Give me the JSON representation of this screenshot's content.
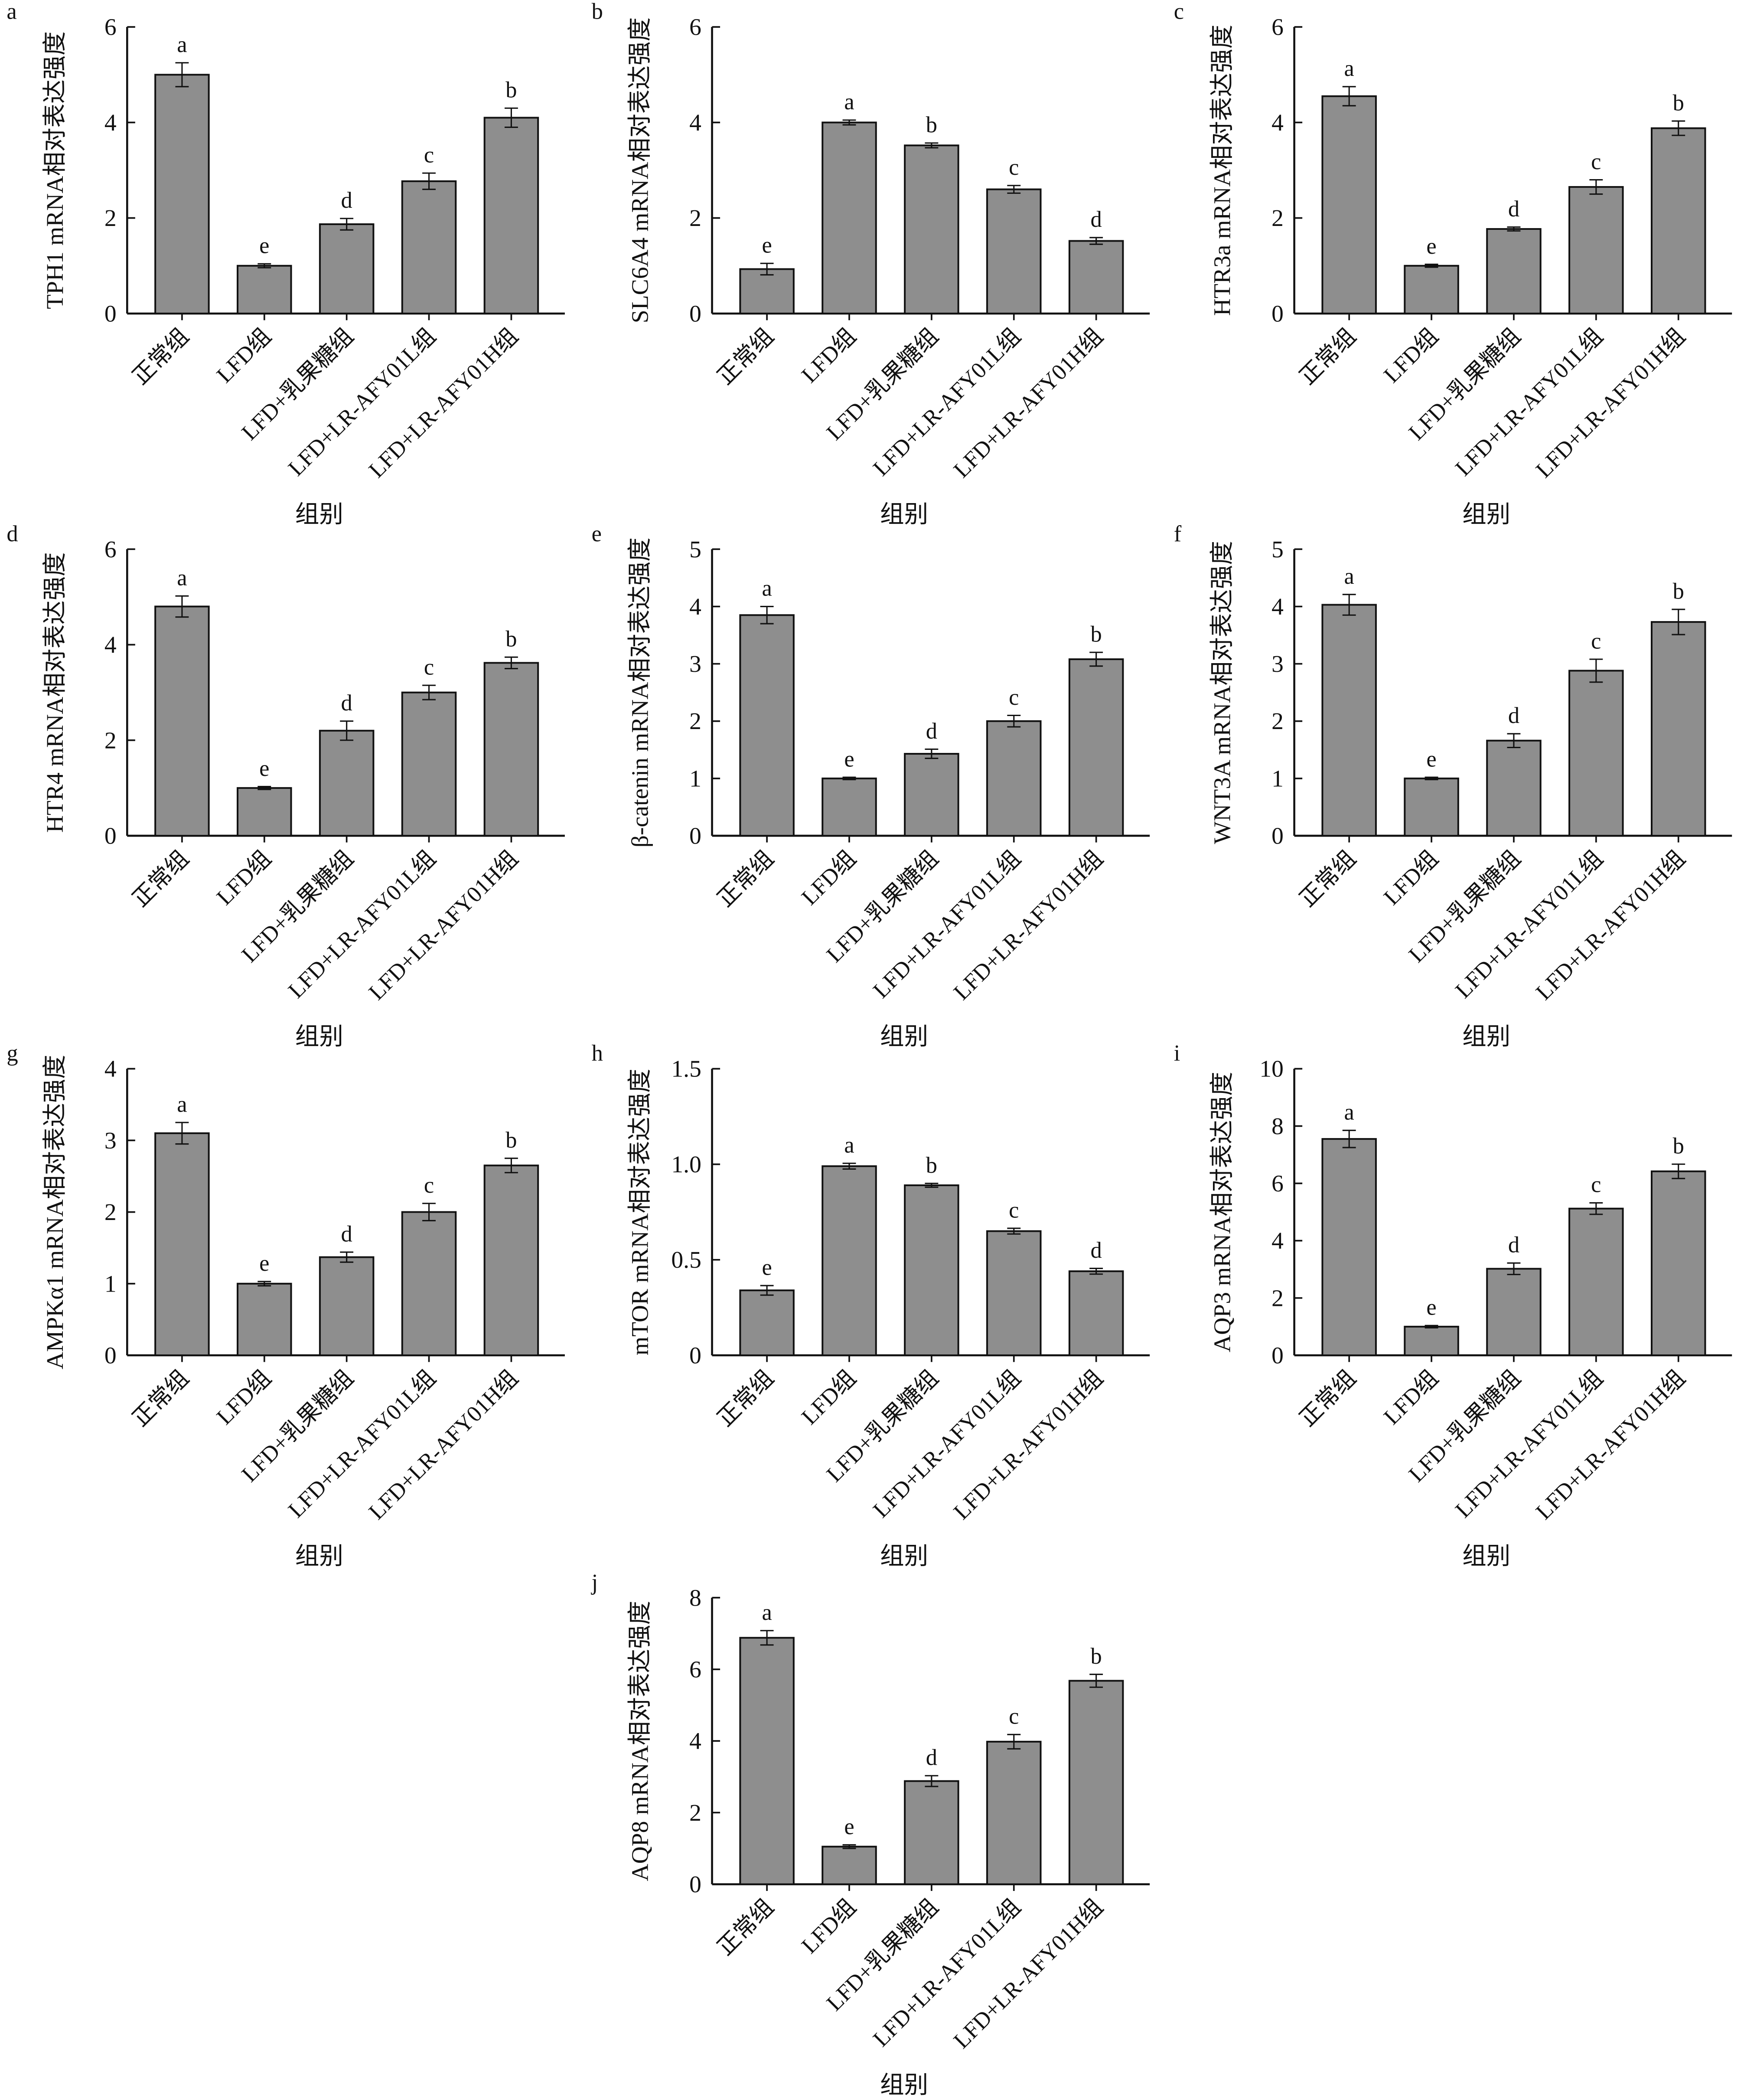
{
  "chart_data": [
    {
      "type": "bar",
      "panel": "a",
      "ylabel": "TPH1 mRNA相对表达强度",
      "xlabel": "组别",
      "ylim": [
        0,
        6
      ],
      "yticks": [
        0,
        2,
        4,
        6
      ],
      "categories": [
        "正常组",
        "LFD组",
        "LFD+乳果糖组",
        "LFD+LR-AFY01L组",
        "LFD+LR-AFY01H组"
      ],
      "values": [
        5.0,
        1.0,
        1.87,
        2.77,
        4.1
      ],
      "errors": [
        0.25,
        0.04,
        0.12,
        0.17,
        0.2
      ],
      "letters": [
        "a",
        "e",
        "d",
        "c",
        "b"
      ]
    },
    {
      "type": "bar",
      "panel": "b",
      "ylabel": "SLC6A4 mRNA相对表达强度",
      "xlabel": "组别",
      "ylim": [
        0,
        6
      ],
      "yticks": [
        0,
        2,
        4,
        6
      ],
      "categories": [
        "正常组",
        "LFD组",
        "LFD+乳果糖组",
        "LFD+LR-AFY01L组",
        "LFD+LR-AFY01H组"
      ],
      "values": [
        0.93,
        4.0,
        3.52,
        2.6,
        1.52
      ],
      "errors": [
        0.12,
        0.05,
        0.05,
        0.08,
        0.07
      ],
      "letters": [
        "e",
        "a",
        "b",
        "c",
        "d"
      ]
    },
    {
      "type": "bar",
      "panel": "c",
      "ylabel": "HTR3a mRNA相对表达强度",
      "xlabel": "组别",
      "ylim": [
        0,
        6
      ],
      "yticks": [
        0,
        2,
        4,
        6
      ],
      "categories": [
        "正常组",
        "LFD组",
        "LFD+乳果糖组",
        "LFD+LR-AFY01L组",
        "LFD+LR-AFY01H组"
      ],
      "values": [
        4.55,
        1.0,
        1.77,
        2.65,
        3.88
      ],
      "errors": [
        0.2,
        0.03,
        0.04,
        0.15,
        0.15
      ],
      "letters": [
        "a",
        "e",
        "d",
        "c",
        "b"
      ]
    },
    {
      "type": "bar",
      "panel": "d",
      "ylabel": "HTR4 mRNA相对表达强度",
      "xlabel": "组别",
      "ylim": [
        0,
        6
      ],
      "yticks": [
        0,
        2,
        4,
        6
      ],
      "categories": [
        "正常组",
        "LFD组",
        "LFD+乳果糖组",
        "LFD+LR-AFY01L组",
        "LFD+LR-AFY01H组"
      ],
      "values": [
        4.8,
        1.0,
        2.2,
        3.0,
        3.62
      ],
      "errors": [
        0.22,
        0.03,
        0.2,
        0.15,
        0.12
      ],
      "letters": [
        "a",
        "e",
        "d",
        "c",
        "b"
      ]
    },
    {
      "type": "bar",
      "panel": "e",
      "ylabel": "β-catenin mRNA相对表达强度",
      "xlabel": "组别",
      "ylim": [
        0,
        5
      ],
      "yticks": [
        0,
        1,
        2,
        3,
        4,
        5
      ],
      "categories": [
        "正常组",
        "LFD组",
        "LFD+乳果糖组",
        "LFD+LR-AFY01L组",
        "LFD+LR-AFY01H组"
      ],
      "values": [
        3.85,
        1.0,
        1.43,
        2.0,
        3.08
      ],
      "errors": [
        0.15,
        0.02,
        0.08,
        0.1,
        0.12
      ],
      "letters": [
        "a",
        "e",
        "d",
        "c",
        "b"
      ]
    },
    {
      "type": "bar",
      "panel": "f",
      "ylabel": "WNT3A mRNA相对表达强度",
      "xlabel": "组别",
      "ylim": [
        0,
        5
      ],
      "yticks": [
        0,
        1,
        2,
        3,
        4,
        5
      ],
      "categories": [
        "正常组",
        "LFD组",
        "LFD+乳果糖组",
        "LFD+LR-AFY01L组",
        "LFD+LR-AFY01H组"
      ],
      "values": [
        4.03,
        1.0,
        1.66,
        2.88,
        3.73
      ],
      "errors": [
        0.18,
        0.02,
        0.12,
        0.2,
        0.22
      ],
      "letters": [
        "a",
        "e",
        "d",
        "c",
        "b"
      ]
    },
    {
      "type": "bar",
      "panel": "g",
      "ylabel": "AMPKα1 mRNA相对表达强度",
      "xlabel": "组别",
      "ylim": [
        0,
        4
      ],
      "yticks": [
        0,
        1,
        2,
        3,
        4
      ],
      "categories": [
        "正常组",
        "LFD组",
        "LFD+乳果糖组",
        "LFD+LR-AFY01L组",
        "LFD+LR-AFY01H组"
      ],
      "values": [
        3.1,
        1.0,
        1.37,
        2.0,
        2.65
      ],
      "errors": [
        0.15,
        0.03,
        0.07,
        0.12,
        0.1
      ],
      "letters": [
        "a",
        "e",
        "d",
        "c",
        "b"
      ]
    },
    {
      "type": "bar",
      "panel": "h",
      "ylabel": "mTOR mRNA相对表达强度",
      "xlabel": "组别",
      "ylim": [
        0,
        1.5
      ],
      "yticks": [
        0,
        0.5,
        1.0,
        1.5
      ],
      "ytick_labels": [
        "0",
        "0.5",
        "1.0",
        "1.5"
      ],
      "categories": [
        "正常组",
        "LFD组",
        "LFD+乳果糖组",
        "LFD+LR-AFY01L组",
        "LFD+LR-AFY01H组"
      ],
      "values": [
        0.34,
        0.99,
        0.89,
        0.65,
        0.44
      ],
      "errors": [
        0.025,
        0.015,
        0.01,
        0.015,
        0.015
      ],
      "letters": [
        "e",
        "a",
        "b",
        "c",
        "d"
      ]
    },
    {
      "type": "bar",
      "panel": "i",
      "ylabel": "AQP3 mRNA相对表达强度",
      "xlabel": "组别",
      "ylim": [
        0,
        10
      ],
      "yticks": [
        0,
        2,
        4,
        6,
        8,
        10
      ],
      "categories": [
        "正常组",
        "LFD组",
        "LFD+乳果糖组",
        "LFD+LR-AFY01L组",
        "LFD+LR-AFY01H组"
      ],
      "values": [
        7.55,
        1.0,
        3.02,
        5.12,
        6.42
      ],
      "errors": [
        0.3,
        0.04,
        0.2,
        0.2,
        0.25
      ],
      "letters": [
        "a",
        "e",
        "d",
        "c",
        "b"
      ]
    },
    {
      "type": "bar",
      "panel": "j",
      "ylabel": "AQP8 mRNA相对表达强度",
      "xlabel": "组别",
      "ylim": [
        0,
        8
      ],
      "yticks": [
        0,
        2,
        4,
        6,
        8
      ],
      "categories": [
        "正常组",
        "LFD组",
        "LFD+乳果糖组",
        "LFD+LR-AFY01L组",
        "LFD+LR-AFY01H组"
      ],
      "values": [
        6.88,
        1.05,
        2.88,
        3.98,
        5.68
      ],
      "errors": [
        0.2,
        0.05,
        0.15,
        0.2,
        0.18
      ],
      "letters": [
        "a",
        "e",
        "d",
        "c",
        "b"
      ]
    }
  ],
  "colors": {
    "bar": "#8e8e8e",
    "axis": "#111111"
  }
}
